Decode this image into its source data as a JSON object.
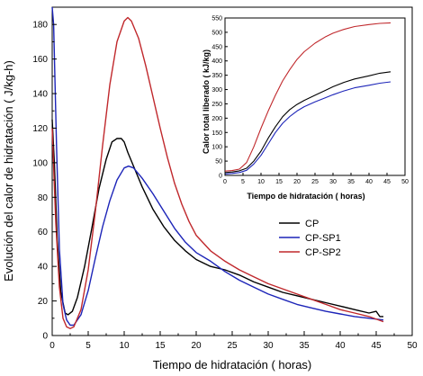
{
  "chart_data": [
    {
      "id": "main",
      "type": "line",
      "title": "",
      "xlabel": "Tiempo de hidratación  ( horas)",
      "ylabel": "Evolución del calor de hidratación  ( J/kg-h)",
      "xlim": [
        0,
        50
      ],
      "ylim": [
        0,
        190
      ],
      "xticks": [
        0,
        5,
        10,
        15,
        20,
        25,
        30,
        35,
        40,
        45,
        50
      ],
      "yticks": [
        0,
        20,
        40,
        60,
        80,
        100,
        120,
        140,
        160,
        180
      ],
      "grid": false,
      "legend": "center-right",
      "series": [
        {
          "name": "CP",
          "color": "#000000",
          "points": [
            [
              0,
              125
            ],
            [
              0.3,
              100
            ],
            [
              0.7,
              55
            ],
            [
              1.2,
              25
            ],
            [
              1.8,
              13
            ],
            [
              2.2,
              12
            ],
            [
              2.8,
              14
            ],
            [
              3.5,
              22
            ],
            [
              4.5,
              40
            ],
            [
              5.5,
              62
            ],
            [
              6.5,
              85
            ],
            [
              7.5,
              102
            ],
            [
              8.3,
              112
            ],
            [
              9,
              114
            ],
            [
              9.6,
              114
            ],
            [
              10,
              112
            ],
            [
              10.5,
              106
            ],
            [
              11.5,
              96
            ],
            [
              12.5,
              86
            ],
            [
              14,
              73
            ],
            [
              15.5,
              63
            ],
            [
              17,
              55
            ],
            [
              18.5,
              49
            ],
            [
              20,
              44
            ],
            [
              22,
              40
            ],
            [
              24,
              38
            ],
            [
              26,
              35
            ],
            [
              28,
              31
            ],
            [
              30,
              28
            ],
            [
              32,
              25
            ],
            [
              34,
              23
            ],
            [
              36,
              21
            ],
            [
              38,
              19
            ],
            [
              40,
              17
            ],
            [
              42,
              15
            ],
            [
              44,
              13
            ],
            [
              45,
              14
            ],
            [
              45.5,
              11
            ],
            [
              46,
              11
            ]
          ]
        },
        {
          "name": "CP-SP1",
          "color": "#1c24b8",
          "points": [
            [
              0,
              190
            ],
            [
              0.2,
              180
            ],
            [
              0.6,
              110
            ],
            [
              1,
              50
            ],
            [
              1.5,
              18
            ],
            [
              2,
              9
            ],
            [
              2.5,
              6
            ],
            [
              3,
              6
            ],
            [
              4,
              12
            ],
            [
              5,
              26
            ],
            [
              6,
              45
            ],
            [
              7,
              63
            ],
            [
              8,
              78
            ],
            [
              9,
              90
            ],
            [
              10,
              97
            ],
            [
              10.6,
              98
            ],
            [
              11.3,
              97
            ],
            [
              12.5,
              91
            ],
            [
              14,
              82
            ],
            [
              15.5,
              72
            ],
            [
              17,
              62
            ],
            [
              18.5,
              54
            ],
            [
              20,
              48
            ],
            [
              22,
              43
            ],
            [
              24,
              37
            ],
            [
              26,
              32
            ],
            [
              28,
              28
            ],
            [
              30,
              24
            ],
            [
              32,
              21
            ],
            [
              34,
              18
            ],
            [
              36,
              16
            ],
            [
              38,
              14
            ],
            [
              40,
              12.5
            ],
            [
              42,
              11
            ],
            [
              44,
              10
            ],
            [
              46,
              9
            ]
          ]
        },
        {
          "name": "CP-SP2",
          "color": "#c0282c",
          "points": [
            [
              0,
              120
            ],
            [
              0.5,
              65
            ],
            [
              1,
              28
            ],
            [
              1.5,
              10
            ],
            [
              2,
              5
            ],
            [
              2.5,
              4
            ],
            [
              3,
              5
            ],
            [
              4,
              15
            ],
            [
              5,
              38
            ],
            [
              6,
              72
            ],
            [
              7,
              110
            ],
            [
              8,
              145
            ],
            [
              9,
              170
            ],
            [
              10,
              182
            ],
            [
              10.5,
              184
            ],
            [
              11,
              182
            ],
            [
              12,
              172
            ],
            [
              13,
              156
            ],
            [
              14,
              138
            ],
            [
              15,
              120
            ],
            [
              16,
              103
            ],
            [
              17,
              88
            ],
            [
              18,
              76
            ],
            [
              19,
              66
            ],
            [
              20,
              58
            ],
            [
              22,
              49
            ],
            [
              24,
              43
            ],
            [
              26,
              38
            ],
            [
              28,
              34
            ],
            [
              30,
              30
            ],
            [
              32,
              27
            ],
            [
              34,
              24
            ],
            [
              36,
              21
            ],
            [
              38,
              18
            ],
            [
              40,
              15
            ],
            [
              42,
              13
            ],
            [
              44,
              11
            ],
            [
              46,
              8
            ]
          ]
        }
      ]
    },
    {
      "id": "inset",
      "type": "line",
      "title": "",
      "xlabel": "Tiempo de hidratación  ( horas)",
      "ylabel": "Calor total liberado  ( kJ/kg)",
      "xlim": [
        0,
        50
      ],
      "ylim": [
        0,
        550
      ],
      "xticks": [
        0,
        5,
        10,
        15,
        20,
        25,
        30,
        35,
        40,
        45,
        50
      ],
      "yticks": [
        0,
        50,
        100,
        150,
        200,
        250,
        300,
        350,
        400,
        450,
        500,
        550
      ],
      "grid": false,
      "series": [
        {
          "name": "CP",
          "color": "#000000",
          "points": [
            [
              0,
              10
            ],
            [
              2,
              12
            ],
            [
              4,
              16
            ],
            [
              6,
              25
            ],
            [
              8,
              50
            ],
            [
              10,
              85
            ],
            [
              12,
              130
            ],
            [
              14,
              170
            ],
            [
              16,
              205
            ],
            [
              18,
              230
            ],
            [
              20,
              248
            ],
            [
              22,
              262
            ],
            [
              25,
              280
            ],
            [
              28,
              298
            ],
            [
              30,
              310
            ],
            [
              33,
              325
            ],
            [
              36,
              337
            ],
            [
              40,
              348
            ],
            [
              43,
              357
            ],
            [
              46,
              362
            ]
          ]
        },
        {
          "name": "CP-SP1",
          "color": "#1c24b8",
          "points": [
            [
              0,
              5
            ],
            [
              2,
              7
            ],
            [
              4,
              10
            ],
            [
              6,
              18
            ],
            [
              8,
              40
            ],
            [
              10,
              70
            ],
            [
              12,
              110
            ],
            [
              14,
              150
            ],
            [
              16,
              182
            ],
            [
              18,
              206
            ],
            [
              20,
              225
            ],
            [
              22,
              240
            ],
            [
              25,
              257
            ],
            [
              28,
              272
            ],
            [
              30,
              282
            ],
            [
              33,
              295
            ],
            [
              36,
              306
            ],
            [
              40,
              315
            ],
            [
              43,
              322
            ],
            [
              46,
              327
            ]
          ]
        },
        {
          "name": "CP-SP2",
          "color": "#c0282c",
          "points": [
            [
              0,
              15
            ],
            [
              2,
              17
            ],
            [
              4,
              22
            ],
            [
              6,
              45
            ],
            [
              8,
              100
            ],
            [
              10,
              165
            ],
            [
              12,
              225
            ],
            [
              14,
              280
            ],
            [
              16,
              330
            ],
            [
              18,
              370
            ],
            [
              20,
              405
            ],
            [
              22,
              432
            ],
            [
              25,
              462
            ],
            [
              28,
              485
            ],
            [
              30,
              497
            ],
            [
              33,
              510
            ],
            [
              36,
              520
            ],
            [
              40,
              527
            ],
            [
              43,
              531
            ],
            [
              46,
              533
            ]
          ]
        }
      ]
    }
  ]
}
